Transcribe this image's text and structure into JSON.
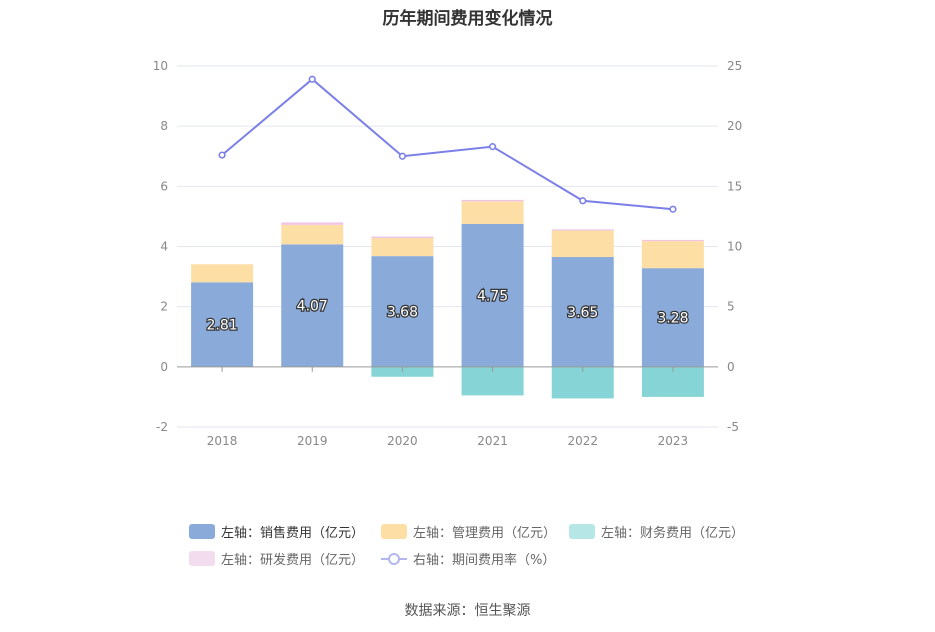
{
  "title": "历年期间费用变化情况",
  "source": "数据来源：恒生聚源",
  "colors": {
    "sales": "#8aabd9",
    "admin": "#fddfa6",
    "finance": "#86d4d6",
    "rnd": "#efc5e6",
    "rate": "#7b7fe8"
  },
  "legend": [
    {
      "key": "sales",
      "label": "左轴：销售费用（亿元）"
    },
    {
      "key": "admin",
      "label": "左轴：管理费用（亿元）"
    },
    {
      "key": "finance",
      "label": "左轴：财务费用（亿元）"
    },
    {
      "key": "rnd",
      "label": "左轴：研发费用（亿元）"
    },
    {
      "key": "rate",
      "label": "右轴：期间费用率（%）"
    }
  ],
  "chart_data": {
    "type": "bar",
    "categories": [
      "2018",
      "2019",
      "2020",
      "2021",
      "2022",
      "2023"
    ],
    "series": [
      {
        "name": "左轴：销售费用（亿元）",
        "key": "sales",
        "axis": "left",
        "type": "bar",
        "values": [
          2.81,
          4.07,
          3.68,
          4.75,
          3.65,
          3.28
        ],
        "data_labels": true
      },
      {
        "name": "左轴：管理费用（亿元）",
        "key": "admin",
        "axis": "left",
        "type": "bar",
        "values": [
          0.6,
          0.65,
          0.6,
          0.75,
          0.88,
          0.9
        ]
      },
      {
        "name": "左轴：财务费用（亿元）",
        "key": "finance",
        "axis": "left",
        "type": "bar",
        "values": [
          0.0,
          0.0,
          -0.33,
          -0.95,
          -1.05,
          -1.0
        ]
      },
      {
        "name": "左轴：研发费用（亿元）",
        "key": "rnd",
        "axis": "left",
        "type": "bar",
        "values": [
          0.0,
          0.08,
          0.05,
          0.05,
          0.04,
          0.04
        ]
      },
      {
        "name": "右轴：期间费用率（%）",
        "key": "rate",
        "axis": "right",
        "type": "line",
        "values": [
          17.6,
          23.9,
          17.5,
          18.3,
          13.8,
          13.1
        ]
      }
    ],
    "y_left": {
      "min": -2,
      "max": 10,
      "ticks": [
        -2,
        0,
        2,
        4,
        6,
        8,
        10
      ]
    },
    "y_right": {
      "min": -5,
      "max": 25,
      "ticks": [
        -5,
        0,
        5,
        10,
        15,
        20,
        25
      ]
    },
    "grid": true,
    "legend_position": "bottom"
  }
}
